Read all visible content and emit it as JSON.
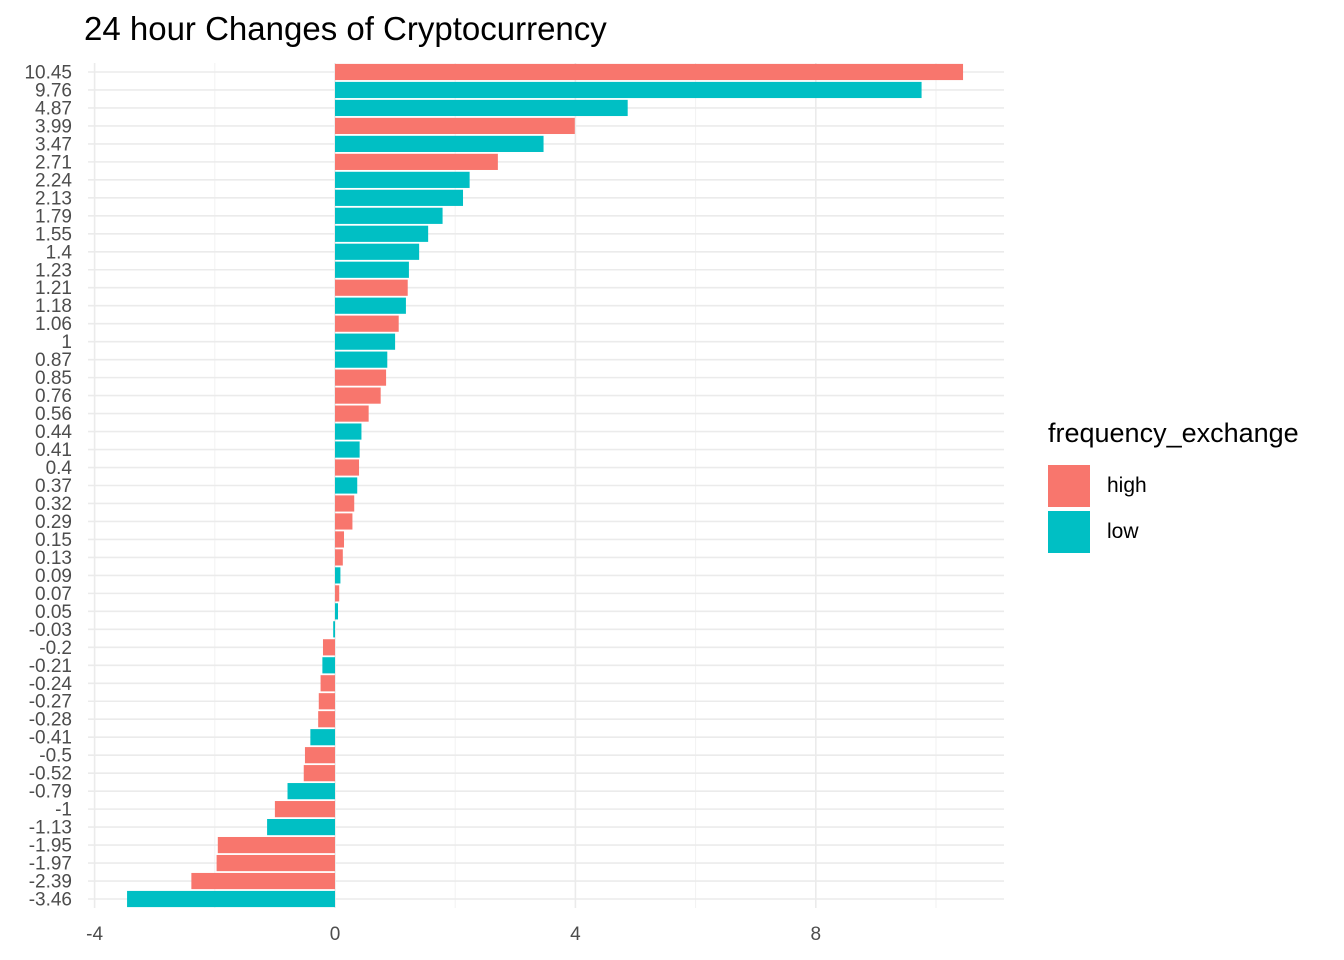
{
  "chart_data": {
    "type": "bar",
    "orientation": "horizontal",
    "title": "24 hour Changes of Cryptocurrency",
    "xlabel": "",
    "ylabel": "",
    "xlim": [
      -4,
      11.1
    ],
    "x_ticks": [
      -4,
      0,
      4,
      8
    ],
    "grid": true,
    "legend": {
      "title": "frequency_exchange",
      "position": "right"
    },
    "series_colors": {
      "high": "#F8766D",
      "low": "#00BFC4"
    },
    "categories": [
      "10.45",
      "9.76",
      "4.87",
      "3.99",
      "3.47",
      "2.71",
      "2.24",
      "2.13",
      "1.79",
      "1.55",
      "1.4",
      "1.23",
      "1.21",
      "1.18",
      "1.06",
      "1",
      "0.87",
      "0.85",
      "0.76",
      "0.56",
      "0.44",
      "0.41",
      "0.4",
      "0.37",
      "0.32",
      "0.29",
      "0.15",
      "0.13",
      "0.09",
      "0.07",
      "0.05",
      "-0.03",
      "-0.2",
      "-0.21",
      "-0.24",
      "-0.27",
      "-0.28",
      "-0.41",
      "-0.5",
      "-0.52",
      "-0.79",
      "-1",
      "-1.13",
      "-1.95",
      "-1.97",
      "-2.39",
      "-3.46"
    ],
    "values": [
      10.45,
      9.76,
      4.87,
      3.99,
      3.47,
      2.71,
      2.24,
      2.13,
      1.79,
      1.55,
      1.4,
      1.23,
      1.21,
      1.18,
      1.06,
      1,
      0.87,
      0.85,
      0.76,
      0.56,
      0.44,
      0.41,
      0.4,
      0.37,
      0.32,
      0.29,
      0.15,
      0.13,
      0.09,
      0.07,
      0.05,
      -0.03,
      -0.2,
      -0.21,
      -0.24,
      -0.27,
      -0.28,
      -0.41,
      -0.5,
      -0.52,
      -0.79,
      -1,
      -1.13,
      -1.95,
      -1.97,
      -2.39,
      -3.46
    ],
    "groups": [
      "high",
      "low",
      "low",
      "high",
      "low",
      "high",
      "low",
      "low",
      "low",
      "low",
      "low",
      "low",
      "high",
      "low",
      "high",
      "low",
      "low",
      "high",
      "high",
      "high",
      "low",
      "low",
      "high",
      "low",
      "high",
      "high",
      "high",
      "high",
      "low",
      "high",
      "low",
      "low",
      "high",
      "low",
      "high",
      "high",
      "high",
      "low",
      "high",
      "high",
      "low",
      "high",
      "low",
      "high",
      "high",
      "high",
      "low"
    ]
  }
}
